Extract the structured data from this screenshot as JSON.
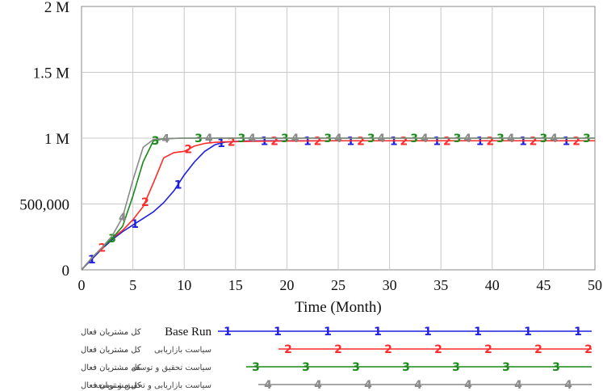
{
  "chart_data": {
    "type": "line",
    "title": "",
    "xlabel": "Time (Month)",
    "ylabel": "",
    "xlim": [
      0,
      50
    ],
    "ylim": [
      0,
      2000000
    ],
    "x_ticks": [
      "0",
      "5",
      "10",
      "15",
      "20",
      "25",
      "30",
      "35",
      "40",
      "45",
      "50"
    ],
    "y_ticks": [
      "0",
      "500,000",
      "1 M",
      "1.5 M",
      "2 M"
    ],
    "grid": true,
    "legend_position": "bottom",
    "series": [
      {
        "name": "Base Run",
        "variable": "کل مشتریان فعال",
        "marker": "1",
        "color": "#1f1fe0",
        "x": [
          0,
          1,
          2,
          3,
          4,
          5,
          6,
          7,
          8,
          9,
          10,
          11,
          12,
          13,
          14,
          15,
          16,
          18,
          20,
          25,
          30,
          35,
          40,
          45,
          50
        ],
        "y": [
          0,
          80000,
          160000,
          230000,
          290000,
          340000,
          390000,
          440000,
          510000,
          600000,
          720000,
          820000,
          900000,
          950000,
          970000,
          975000,
          978000,
          980000,
          980000,
          980000,
          980000,
          980000,
          980000,
          980000,
          980000
        ]
      },
      {
        "name": "سیاست بازاریابی",
        "variable": "کل مشتریان فعال",
        "marker": "2",
        "color": "#ff2a2a",
        "x": [
          0,
          1,
          2,
          3,
          4,
          5,
          6,
          7,
          8,
          9,
          10,
          11,
          12,
          13,
          14,
          16,
          18,
          20,
          25,
          30,
          35,
          40,
          45,
          50
        ],
        "y": [
          0,
          90000,
          170000,
          240000,
          300000,
          380000,
          480000,
          660000,
          850000,
          890000,
          900000,
          940000,
          960000,
          968000,
          972000,
          975000,
          977000,
          978000,
          980000,
          980000,
          980000,
          980000,
          980000,
          980000
        ]
      },
      {
        "name": "سیاست تحقیق و توسعه",
        "variable": "کل مشتریان فعال",
        "marker": "3",
        "color": "#1a8a1a",
        "x": [
          0,
          1,
          2,
          3,
          4,
          5,
          6,
          7,
          8,
          9,
          10,
          12,
          15,
          20,
          25,
          30,
          35,
          40,
          45,
          50
        ],
        "y": [
          0,
          90000,
          170000,
          240000,
          330000,
          560000,
          820000,
          980000,
          995000,
          998000,
          1000000,
          1000000,
          1000000,
          1000000,
          1000000,
          1000000,
          1000000,
          1000000,
          1000000,
          1000000
        ]
      },
      {
        "name": "سیاست بازاریابی و تحقیق و توسعه",
        "variable": "کل مشتریان فعال",
        "marker": "4",
        "color": "#8a8a8a",
        "x": [
          0,
          1,
          2,
          3,
          4,
          5,
          6,
          7,
          8,
          9,
          10,
          12,
          15,
          20,
          25,
          30,
          35,
          40,
          45,
          50
        ],
        "y": [
          0,
          90000,
          170000,
          260000,
          400000,
          680000,
          930000,
          990000,
          995000,
          998000,
          1000000,
          1000000,
          1000000,
          1000000,
          1000000,
          1000000,
          1000000,
          1000000,
          1000000,
          1000000
        ]
      }
    ]
  }
}
